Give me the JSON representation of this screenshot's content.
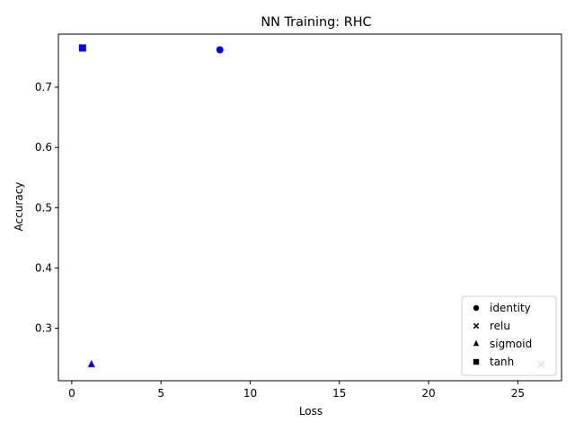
{
  "chart_data": {
    "type": "scatter",
    "title": "NN Training: RHC",
    "xlabel": "Loss",
    "ylabel": "Accuracy",
    "xlim": [
      -0.75,
      27.45
    ],
    "ylim": [
      0.213,
      0.788
    ],
    "xticks": [
      0,
      5,
      10,
      15,
      20,
      25
    ],
    "yticks": [
      0.3,
      0.4,
      0.5,
      0.6,
      0.7
    ],
    "grid": false,
    "legend_position": "lower-right",
    "marker_color": "#0000ff",
    "series": [
      {
        "name": "identity",
        "marker": "circle",
        "points": [
          {
            "x": 8.3,
            "y": 0.762
          }
        ]
      },
      {
        "name": "relu",
        "marker": "x",
        "points": [
          {
            "x": 26.3,
            "y": 0.24
          }
        ]
      },
      {
        "name": "sigmoid",
        "marker": "triangle",
        "points": [
          {
            "x": 1.1,
            "y": 0.24
          }
        ]
      },
      {
        "name": "tanh",
        "marker": "square",
        "points": [
          {
            "x": 0.6,
            "y": 0.765
          }
        ]
      }
    ]
  }
}
